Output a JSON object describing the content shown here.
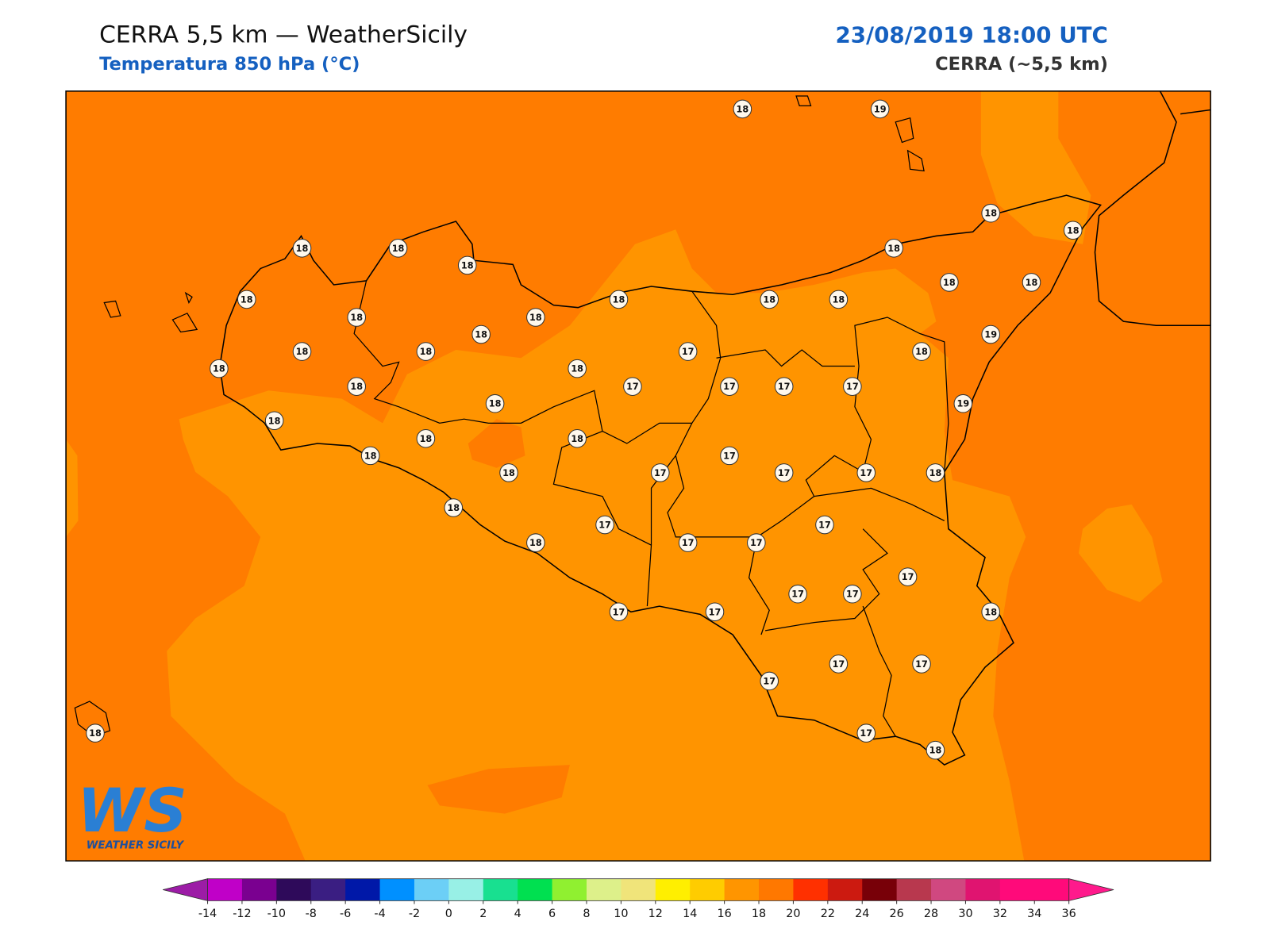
{
  "header": {
    "title": "CERRA 5,5 km — WeatherSicily",
    "subtitle": "Temperatura 850 hPa (°C)",
    "datetime": "23/08/2019 18:00 UTC",
    "model": "CERRA (~5,5 km)"
  },
  "logo": {
    "mark": "WS",
    "text": "WEATHER SICILY"
  },
  "stations": [
    18,
    19,
    18,
    18,
    18,
    18,
    18,
    18,
    18,
    18,
    18,
    18,
    18,
    18,
    18,
    18,
    18,
    18,
    18,
    18,
    17,
    18,
    19,
    18,
    18,
    17,
    17,
    17,
    17,
    19,
    18,
    18,
    18,
    18,
    18,
    18,
    17,
    17,
    17,
    17,
    18,
    18,
    17,
    17,
    18,
    17,
    17,
    17,
    17,
    17,
    17,
    17,
    18,
    17,
    17,
    17,
    18,
    17,
    18
  ],
  "colorbar": {
    "ticks": [
      -14,
      -12,
      -10,
      -8,
      -6,
      -4,
      -2,
      0,
      2,
      4,
      6,
      8,
      10,
      12,
      14,
      16,
      18,
      20,
      22,
      24,
      26,
      28,
      30,
      32,
      34,
      36
    ],
    "colors": [
      "#c000c8",
      "#7a0090",
      "#2e0a5a",
      "#3a1e82",
      "#0018a8",
      "#0090ff",
      "#6ccff6",
      "#98f0e6",
      "#18e090",
      "#00e050",
      "#90f030",
      "#ddf08a",
      "#f0e47a",
      "#ffef00",
      "#ffcc00",
      "#ff9500",
      "#ff7800",
      "#ff3000",
      "#cc1a10",
      "#780008",
      "#b8384e",
      "#d04880",
      "#e01470",
      "#ff0a7a",
      "#ff0a7a"
    ],
    "under_color": "#9c1ca6",
    "over_color": "#ff1a8c"
  }
}
